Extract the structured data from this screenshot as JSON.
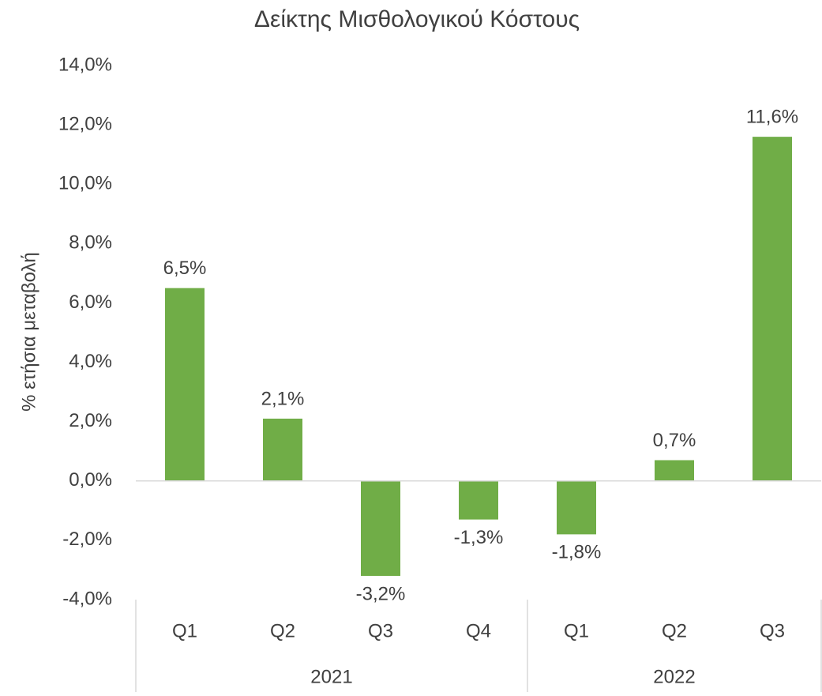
{
  "chart_data": {
    "type": "bar",
    "title": "Δείκτης Μισθολογικού Κόστους",
    "y_label": "% ετήσια μεταβολή",
    "category_groups": [
      {
        "name": "2021",
        "categories": [
          "Q1",
          "Q2",
          "Q3",
          "Q4"
        ]
      },
      {
        "name": "2022",
        "categories": [
          "Q1",
          "Q2",
          "Q3"
        ]
      }
    ],
    "values": [
      6.5,
      2.1,
      -3.2,
      -1.3,
      -1.8,
      0.7,
      11.6
    ],
    "value_labels": [
      "6,5%",
      "2,1%",
      "-3,2%",
      "-1,3%",
      "-1,8%",
      "0,7%",
      "11,6%"
    ],
    "color": "#70ad47",
    "ylim": [
      -4,
      14
    ],
    "yticks": [
      {
        "value": -4,
        "label": "-4,0%"
      },
      {
        "value": -2,
        "label": "-2,0%"
      },
      {
        "value": 0,
        "label": "0,0%"
      },
      {
        "value": 2,
        "label": "2,0%"
      },
      {
        "value": 4,
        "label": "4,0%"
      },
      {
        "value": 6,
        "label": "6,0%"
      },
      {
        "value": 8,
        "label": "8,0%"
      },
      {
        "value": 10,
        "label": "10,0%"
      },
      {
        "value": 12,
        "label": "12,0%"
      },
      {
        "value": 14,
        "label": "14,0%"
      }
    ],
    "grid": false
  }
}
